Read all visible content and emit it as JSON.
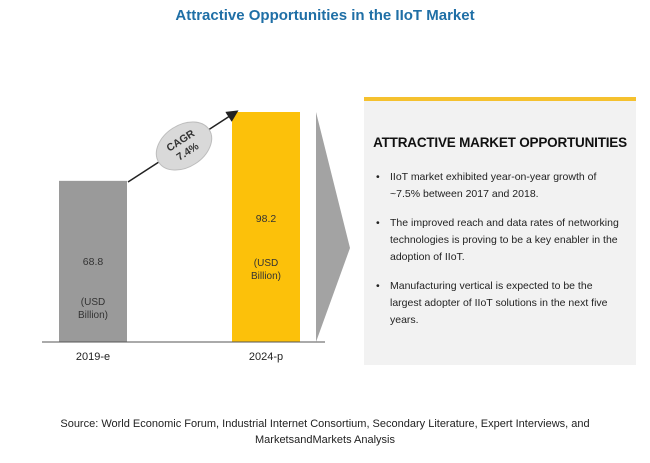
{
  "title": "Attractive Opportunities in the IIoT Market",
  "chart_data": {
    "type": "bar",
    "categories": [
      "2019-e",
      "2024-p"
    ],
    "values": [
      68.8,
      98.2
    ],
    "value_labels": [
      "68.8",
      "98.2"
    ],
    "unit_label": [
      "(USD",
      "Billion)"
    ],
    "bar_colors": [
      "#9a9a9a",
      "#fcc10a"
    ],
    "cagr": [
      "CAGR",
      "7.4%"
    ]
  },
  "panel": {
    "heading": "ATTRACTIVE MARKET OPPORTUNITIES",
    "bullet_char": "•",
    "bullets": [
      "IIoT market exhibited year-on-year growth of ~7.5% between 2017 and 2018.",
      "The improved reach and data rates of networking technologies is proving to be a key enabler in the adoption of IIoT.",
      "Manufacturing vertical is expected to be the largest adopter of IIoT solutions in the next five years."
    ],
    "accent_color": "#f5c12e"
  },
  "source": {
    "line1": "Source: World Economic Forum, Industrial Internet Consortium, Secondary Literature, Expert Interviews, and",
    "line2": "MarketsandMarkets Analysis"
  }
}
